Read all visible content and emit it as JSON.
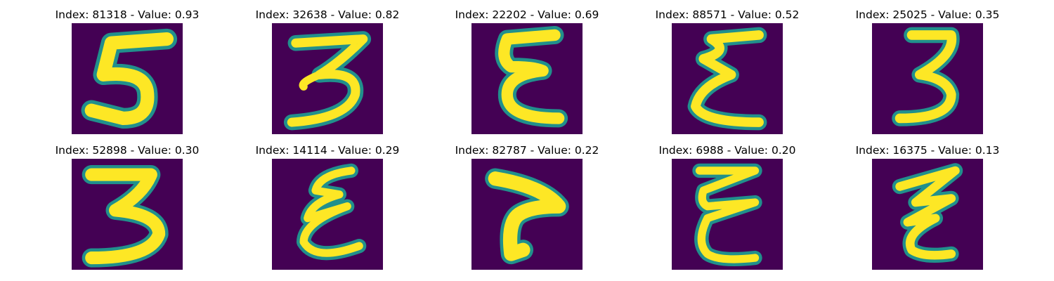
{
  "panels": [
    {
      "title": "Index: 81318 - Value: 0.93",
      "image_shape": "five-like"
    },
    {
      "title": "Index: 32638 - Value: 0.82",
      "image_shape": "three-like"
    },
    {
      "title": "Index: 22202 - Value: 0.69",
      "image_shape": "epsilon-like"
    },
    {
      "title": "Index: 88571 - Value: 0.52",
      "image_shape": "epsilon-like"
    },
    {
      "title": "Index: 25025 - Value: 0.35",
      "image_shape": "three-like"
    },
    {
      "title": "Index: 52898 - Value: 0.30",
      "image_shape": "three-like"
    },
    {
      "title": "Index: 14114 - Value: 0.29",
      "image_shape": "epsilon-like"
    },
    {
      "title": "Index: 82787 - Value: 0.22",
      "image_shape": "seven-like"
    },
    {
      "title": "Index: 6988 - Value: 0.20",
      "image_shape": "epsilon-like"
    },
    {
      "title": "Index: 16375 - Value: 0.13",
      "image_shape": "z-like"
    }
  ],
  "colors": {
    "background": "#440154",
    "edge": "#21908c",
    "stroke": "#fde725"
  }
}
